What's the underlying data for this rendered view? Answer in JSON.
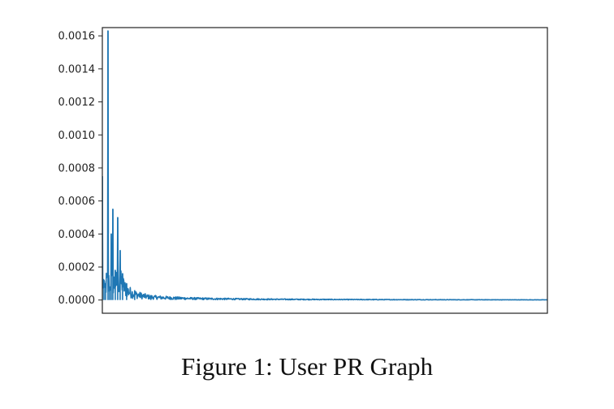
{
  "caption": "Figure 1: User PR Graph",
  "chart_data": {
    "type": "line",
    "title": "",
    "xlabel": "",
    "ylabel": "",
    "x_ticks_shown": false,
    "ylim": [
      -8e-05,
      0.00165
    ],
    "y_ticks": [
      {
        "value": 0.0016,
        "label": "0.0016"
      },
      {
        "value": 0.0014,
        "label": "0.0014"
      },
      {
        "value": 0.0012,
        "label": "0.0012"
      },
      {
        "value": 0.001,
        "label": "0.0010"
      },
      {
        "value": 0.0008,
        "label": "0.0008"
      },
      {
        "value": 0.0006,
        "label": "0.0006"
      },
      {
        "value": 0.0004,
        "label": "0.0004"
      },
      {
        "value": 0.0002,
        "label": "0.0002"
      },
      {
        "value": 0.0,
        "label": "0.0000"
      }
    ],
    "grid": false,
    "legend": "none",
    "line_color": "#1f77b4",
    "series": [
      {
        "description": "dense noisy signal with a sharp spike near x=7 decaying toward zero",
        "xlim": [
          0,
          550
        ],
        "peaks": [
          {
            "x": 0,
            "value": 0.00075
          },
          {
            "x": 2,
            "value": 0.00012
          },
          {
            "x": 4,
            "value": 0.0001
          },
          {
            "x": 7,
            "value": 0.00163
          },
          {
            "x": 9,
            "value": 8e-05
          },
          {
            "x": 11,
            "value": 0.0004
          },
          {
            "x": 13,
            "value": 0.00055
          },
          {
            "x": 16,
            "value": 0.00018
          },
          {
            "x": 19,
            "value": 0.0005
          },
          {
            "x": 22,
            "value": 0.0003
          },
          {
            "x": 25,
            "value": 0.00016
          },
          {
            "x": 30,
            "value": 0.0001
          },
          {
            "x": 40,
            "value": 6e-05
          },
          {
            "x": 60,
            "value": 3e-05
          },
          {
            "x": 90,
            "value": 2e-05
          },
          {
            "x": 115,
            "value": 1.5e-05
          },
          {
            "x": 200,
            "value": 8e-06
          },
          {
            "x": 300,
            "value": 5e-06
          },
          {
            "x": 550,
            "value": 2e-06
          }
        ]
      }
    ]
  }
}
